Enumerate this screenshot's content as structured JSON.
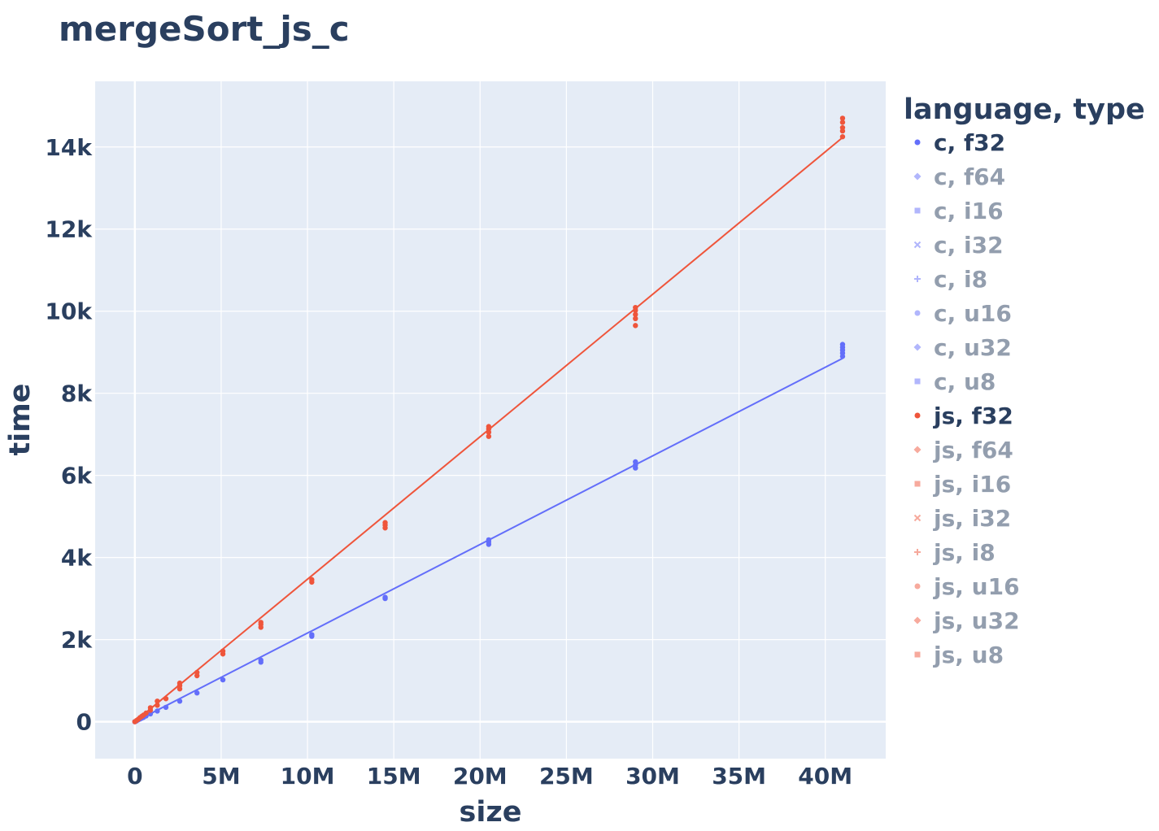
{
  "chart_data": {
    "type": "scatter",
    "title": "mergeSort_js_c",
    "xlabel": "size",
    "ylabel": "time",
    "xlim": [
      -2300000,
      43500000
    ],
    "ylim": [
      -900,
      15600
    ],
    "x_ticks": [
      {
        "value": 0,
        "label": "0"
      },
      {
        "value": 5000000,
        "label": "5M"
      },
      {
        "value": 10000000,
        "label": "10M"
      },
      {
        "value": 15000000,
        "label": "15M"
      },
      {
        "value": 20000000,
        "label": "20M"
      },
      {
        "value": 25000000,
        "label": "25M"
      },
      {
        "value": 30000000,
        "label": "30M"
      },
      {
        "value": 35000000,
        "label": "35M"
      },
      {
        "value": 40000000,
        "label": "40M"
      }
    ],
    "y_ticks": [
      {
        "value": 0,
        "label": "0"
      },
      {
        "value": 2000,
        "label": "2k"
      },
      {
        "value": 4000,
        "label": "4k"
      },
      {
        "value": 6000,
        "label": "6k"
      },
      {
        "value": 8000,
        "label": "8k"
      },
      {
        "value": 10000,
        "label": "10k"
      },
      {
        "value": 12000,
        "label": "12k"
      },
      {
        "value": 14000,
        "label": "14k"
      }
    ],
    "grid": true,
    "plot_bgcolor": "#e5ecf6",
    "legend": {
      "title": "language, type",
      "placement": "right",
      "items": [
        {
          "label": "c, f32",
          "symbol": "circle",
          "color": "#636efa",
          "active": true
        },
        {
          "label": "c, f64",
          "symbol": "diamond",
          "color": "#636efa",
          "active": false
        },
        {
          "label": "c, i16",
          "symbol": "square",
          "color": "#636efa",
          "active": false
        },
        {
          "label": "c, i32",
          "symbol": "x",
          "color": "#636efa",
          "active": false
        },
        {
          "label": "c, i8",
          "symbol": "cross",
          "color": "#636efa",
          "active": false
        },
        {
          "label": "c, u16",
          "symbol": "circle",
          "color": "#636efa",
          "active": false
        },
        {
          "label": "c, u32",
          "symbol": "diamond",
          "color": "#636efa",
          "active": false
        },
        {
          "label": "c, u8",
          "symbol": "square",
          "color": "#636efa",
          "active": false
        },
        {
          "label": "js, f32",
          "symbol": "circle",
          "color": "#ef553b",
          "active": true
        },
        {
          "label": "js, f64",
          "symbol": "diamond",
          "color": "#ef553b",
          "active": false
        },
        {
          "label": "js, i16",
          "symbol": "square",
          "color": "#ef553b",
          "active": false
        },
        {
          "label": "js, i32",
          "symbol": "x",
          "color": "#ef553b",
          "active": false
        },
        {
          "label": "js, i8",
          "symbol": "cross",
          "color": "#ef553b",
          "active": false
        },
        {
          "label": "js, u16",
          "symbol": "circle",
          "color": "#ef553b",
          "active": false
        },
        {
          "label": "js, u32",
          "symbol": "diamond",
          "color": "#ef553b",
          "active": false
        },
        {
          "label": "js, u8",
          "symbol": "square",
          "color": "#ef553b",
          "active": false
        }
      ]
    },
    "series": [
      {
        "name": "c, f32",
        "color": "#636efa",
        "trendline": {
          "x": [
            0,
            41000000
          ],
          "y": [
            0,
            8850
          ]
        },
        "points": [
          {
            "x": 0,
            "y": 0
          },
          {
            "x": 100000,
            "y": 20
          },
          {
            "x": 200000,
            "y": 45
          },
          {
            "x": 300000,
            "y": 65
          },
          {
            "x": 400000,
            "y": 85
          },
          {
            "x": 500000,
            "y": 105
          },
          {
            "x": 650000,
            "y": 140
          },
          {
            "x": 900000,
            "y": 190
          },
          {
            "x": 1300000,
            "y": 260
          },
          {
            "x": 1800000,
            "y": 350
          },
          {
            "x": 2600000,
            "y": 500
          },
          {
            "x": 3600000,
            "y": 700
          },
          {
            "x": 5100000,
            "y": 1020
          },
          {
            "x": 7300000,
            "y": 1450
          },
          {
            "x": 7300000,
            "y": 1500
          },
          {
            "x": 10250000,
            "y": 2080
          },
          {
            "x": 10250000,
            "y": 2120
          },
          {
            "x": 14500000,
            "y": 3000
          },
          {
            "x": 14500000,
            "y": 3030
          },
          {
            "x": 20500000,
            "y": 4320
          },
          {
            "x": 20500000,
            "y": 4380
          },
          {
            "x": 20500000,
            "y": 4430
          },
          {
            "x": 29000000,
            "y": 6180
          },
          {
            "x": 29000000,
            "y": 6250
          },
          {
            "x": 29000000,
            "y": 6330
          },
          {
            "x": 41000000,
            "y": 8900
          },
          {
            "x": 41000000,
            "y": 8980
          },
          {
            "x": 41000000,
            "y": 9050
          },
          {
            "x": 41000000,
            "y": 9120
          },
          {
            "x": 41000000,
            "y": 9190
          }
        ]
      },
      {
        "name": "js, f32",
        "color": "#ef553b",
        "trendline": {
          "x": [
            0,
            41000000
          ],
          "y": [
            0,
            14230
          ]
        },
        "points": [
          {
            "x": 0,
            "y": 0
          },
          {
            "x": 100000,
            "y": 30
          },
          {
            "x": 200000,
            "y": 60
          },
          {
            "x": 300000,
            "y": 100
          },
          {
            "x": 400000,
            "y": 130
          },
          {
            "x": 500000,
            "y": 160
          },
          {
            "x": 650000,
            "y": 210
          },
          {
            "x": 900000,
            "y": 280
          },
          {
            "x": 900000,
            "y": 340
          },
          {
            "x": 1300000,
            "y": 400
          },
          {
            "x": 1300000,
            "y": 500
          },
          {
            "x": 1800000,
            "y": 560
          },
          {
            "x": 2600000,
            "y": 800
          },
          {
            "x": 2600000,
            "y": 880
          },
          {
            "x": 2600000,
            "y": 940
          },
          {
            "x": 3600000,
            "y": 1120
          },
          {
            "x": 3600000,
            "y": 1200
          },
          {
            "x": 5100000,
            "y": 1650
          },
          {
            "x": 5100000,
            "y": 1720
          },
          {
            "x": 7300000,
            "y": 2300
          },
          {
            "x": 7300000,
            "y": 2370
          },
          {
            "x": 7300000,
            "y": 2420
          },
          {
            "x": 10250000,
            "y": 3400
          },
          {
            "x": 10250000,
            "y": 3460
          },
          {
            "x": 14500000,
            "y": 4720
          },
          {
            "x": 14500000,
            "y": 4790
          },
          {
            "x": 14500000,
            "y": 4850
          },
          {
            "x": 20500000,
            "y": 6950
          },
          {
            "x": 20500000,
            "y": 7050
          },
          {
            "x": 20500000,
            "y": 7130
          },
          {
            "x": 20500000,
            "y": 7190
          },
          {
            "x": 29000000,
            "y": 9650
          },
          {
            "x": 29000000,
            "y": 9820
          },
          {
            "x": 29000000,
            "y": 9920
          },
          {
            "x": 29000000,
            "y": 10020
          },
          {
            "x": 29000000,
            "y": 10090
          },
          {
            "x": 41000000,
            "y": 14250
          },
          {
            "x": 41000000,
            "y": 14390
          },
          {
            "x": 41000000,
            "y": 14470
          },
          {
            "x": 41000000,
            "y": 14600
          },
          {
            "x": 41000000,
            "y": 14700
          }
        ]
      }
    ]
  }
}
